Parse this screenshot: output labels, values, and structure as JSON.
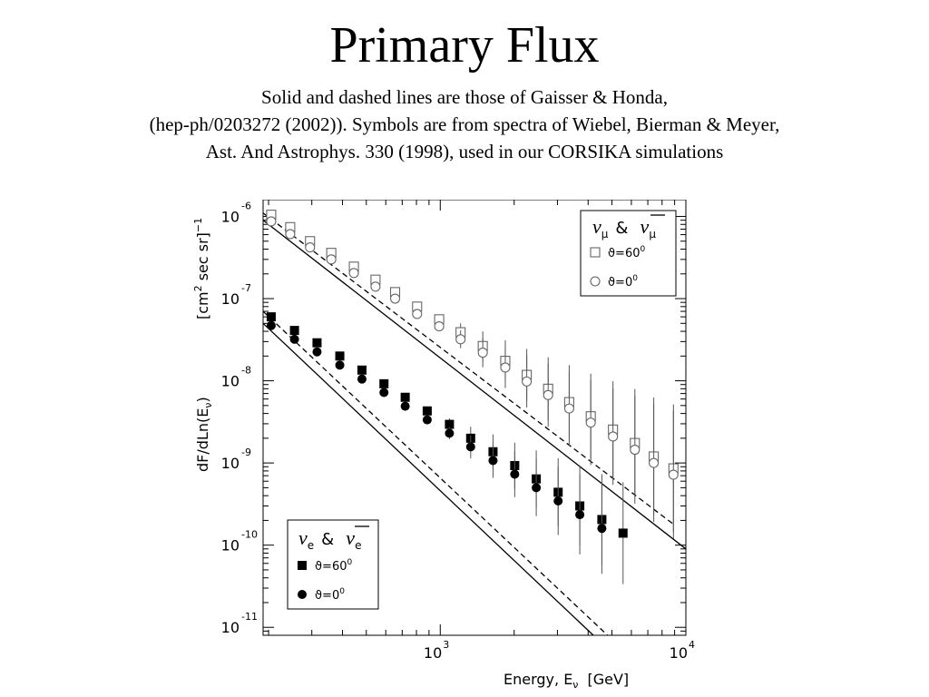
{
  "slide": {
    "title": "Primary Flux",
    "caption_lines": [
      "Solid and dashed lines are those of Gaisser &  Honda,",
      "(hep-ph/0203272 (2002)). Symbols are from spectra of Wiebel, Bierman & Meyer,",
      "Ast. And Astrophys. 330 (1998), used in our CORSIKA simulations"
    ]
  },
  "chart_data": {
    "type": "scatter",
    "xlabel": "Energy, E",
    "xlabel_sub": "ν",
    "xlabel_unit": "[GeV]",
    "ylabel": "dF/dLn(E",
    "ylabel_sub": "ν",
    "ylabel_close": ")",
    "ylabel_unit": "[cm",
    "ylabel_unit_exp": "2",
    "ylabel_unit_rest": " sec sr]",
    "ylabel_unit_exp2": "−1",
    "x_scale": "log",
    "y_scale": "log",
    "xlim": [
      190,
      10000
    ],
    "ylim": [
      8e-12,
      1.6e-06
    ],
    "x_ticks": [
      {
        "value": 1000,
        "base": "10",
        "exp": "3"
      },
      {
        "value": 10000,
        "base": "10",
        "exp": "4"
      }
    ],
    "y_ticks": [
      {
        "value": 1e-06,
        "base": "10",
        "exp": "-6"
      },
      {
        "value": 1e-07,
        "base": "10",
        "exp": "-7"
      },
      {
        "value": 1e-08,
        "base": "10",
        "exp": "-8"
      },
      {
        "value": 1e-09,
        "base": "10",
        "exp": "-9"
      },
      {
        "value": 1e-10,
        "base": "10",
        "exp": "-10"
      },
      {
        "value": 1e-11,
        "base": "10",
        "exp": "-11"
      }
    ],
    "legends": [
      {
        "position": "top-right",
        "title": "ν",
        "title_sub": "μ",
        "title_amp": "&",
        "entries": [
          {
            "marker": "open-square",
            "label": "ϑ=60",
            "sup": "0"
          },
          {
            "marker": "open-circle",
            "label": "ϑ=0",
            "sup": "0"
          }
        ]
      },
      {
        "position": "bottom-left",
        "title": "ν",
        "title_sub": "e",
        "title_amp": "&",
        "entries": [
          {
            "marker": "filled-square",
            "label": "ϑ=60",
            "sup": "0"
          },
          {
            "marker": "filled-circle",
            "label": "ϑ=0",
            "sup": "0"
          }
        ]
      }
    ],
    "lines": [
      {
        "flavor": "numu",
        "style": "dashed",
        "angle": 60,
        "x": [
          190,
          8900
        ],
        "y": [
          1.1e-06,
          1.8e-10
        ]
      },
      {
        "flavor": "numu",
        "style": "solid",
        "angle": 0,
        "x": [
          190,
          10000
        ],
        "y": [
          9e-07,
          9e-11
        ]
      },
      {
        "flavor": "nue",
        "style": "dashed",
        "angle": 60,
        "x": [
          190,
          4800
        ],
        "y": [
          7e-08,
          8e-12
        ]
      },
      {
        "flavor": "nue",
        "style": "solid",
        "angle": 0,
        "x": [
          190,
          4200
        ],
        "y": [
          5e-08,
          8e-12
        ]
      }
    ],
    "series": [
      {
        "flavor": "numu",
        "angle": 60,
        "marker": "open-square",
        "x": [
          205,
          245,
          295,
          360,
          445,
          545,
          655,
          805,
          990,
          1210,
          1490,
          1840,
          2250,
          2750,
          3350,
          4100,
          5050,
          6200,
          7400,
          8900
        ],
        "y": [
          1.05e-06,
          7.4e-07,
          5e-07,
          3.6e-07,
          2.45e-07,
          1.7e-07,
          1.2e-07,
          8e-08,
          5.6e-08,
          3.9e-08,
          2.65e-08,
          1.75e-08,
          1.18e-08,
          8e-09,
          5.5e-09,
          3.7e-09,
          2.55e-09,
          1.75e-09,
          1.2e-09,
          8.6e-10
        ]
      },
      {
        "flavor": "numu",
        "angle": 0,
        "marker": "open-circle",
        "x": [
          205,
          245,
          295,
          360,
          445,
          545,
          655,
          805,
          990,
          1210,
          1490,
          1840,
          2250,
          2750,
          3350,
          4100,
          5050,
          6200,
          7400,
          8900
        ],
        "y": [
          8.7e-07,
          6.1e-07,
          4.2e-07,
          3e-07,
          2.05e-07,
          1.4e-07,
          1e-07,
          6.5e-08,
          4.6e-08,
          3.2e-08,
          2.2e-08,
          1.45e-08,
          9.8e-09,
          6.7e-09,
          4.6e-09,
          3.1e-09,
          2.1e-09,
          1.45e-09,
          1e-09,
          7.2e-10
        ]
      },
      {
        "flavor": "nue",
        "angle": 60,
        "marker": "filled-square",
        "x": [
          205,
          255,
          315,
          390,
          480,
          590,
          720,
          885,
          1090,
          1330,
          1640,
          2010,
          2460,
          3020,
          3700,
          4550,
          5550
        ],
        "y": [
          6e-08,
          4.1e-08,
          2.9e-08,
          2e-08,
          1.35e-08,
          9.2e-09,
          6.3e-09,
          4.3e-09,
          2.95e-09,
          2e-09,
          1.37e-09,
          9.3e-10,
          6.4e-10,
          4.4e-10,
          3e-10,
          2.05e-10,
          1.4e-10
        ]
      },
      {
        "flavor": "nue",
        "angle": 0,
        "marker": "filled-circle",
        "x": [
          205,
          255,
          315,
          390,
          480,
          590,
          720,
          885,
          1090,
          1330,
          1640,
          2010,
          2460,
          3020,
          3700,
          4550
        ],
        "y": [
          4.7e-08,
          3.2e-08,
          2.25e-08,
          1.55e-08,
          1.05e-08,
          7.2e-09,
          4.9e-09,
          3.35e-09,
          2.3e-09,
          1.57e-09,
          1.07e-09,
          7.3e-10,
          5e-10,
          3.45e-10,
          2.35e-10,
          1.6e-10
        ]
      }
    ]
  }
}
